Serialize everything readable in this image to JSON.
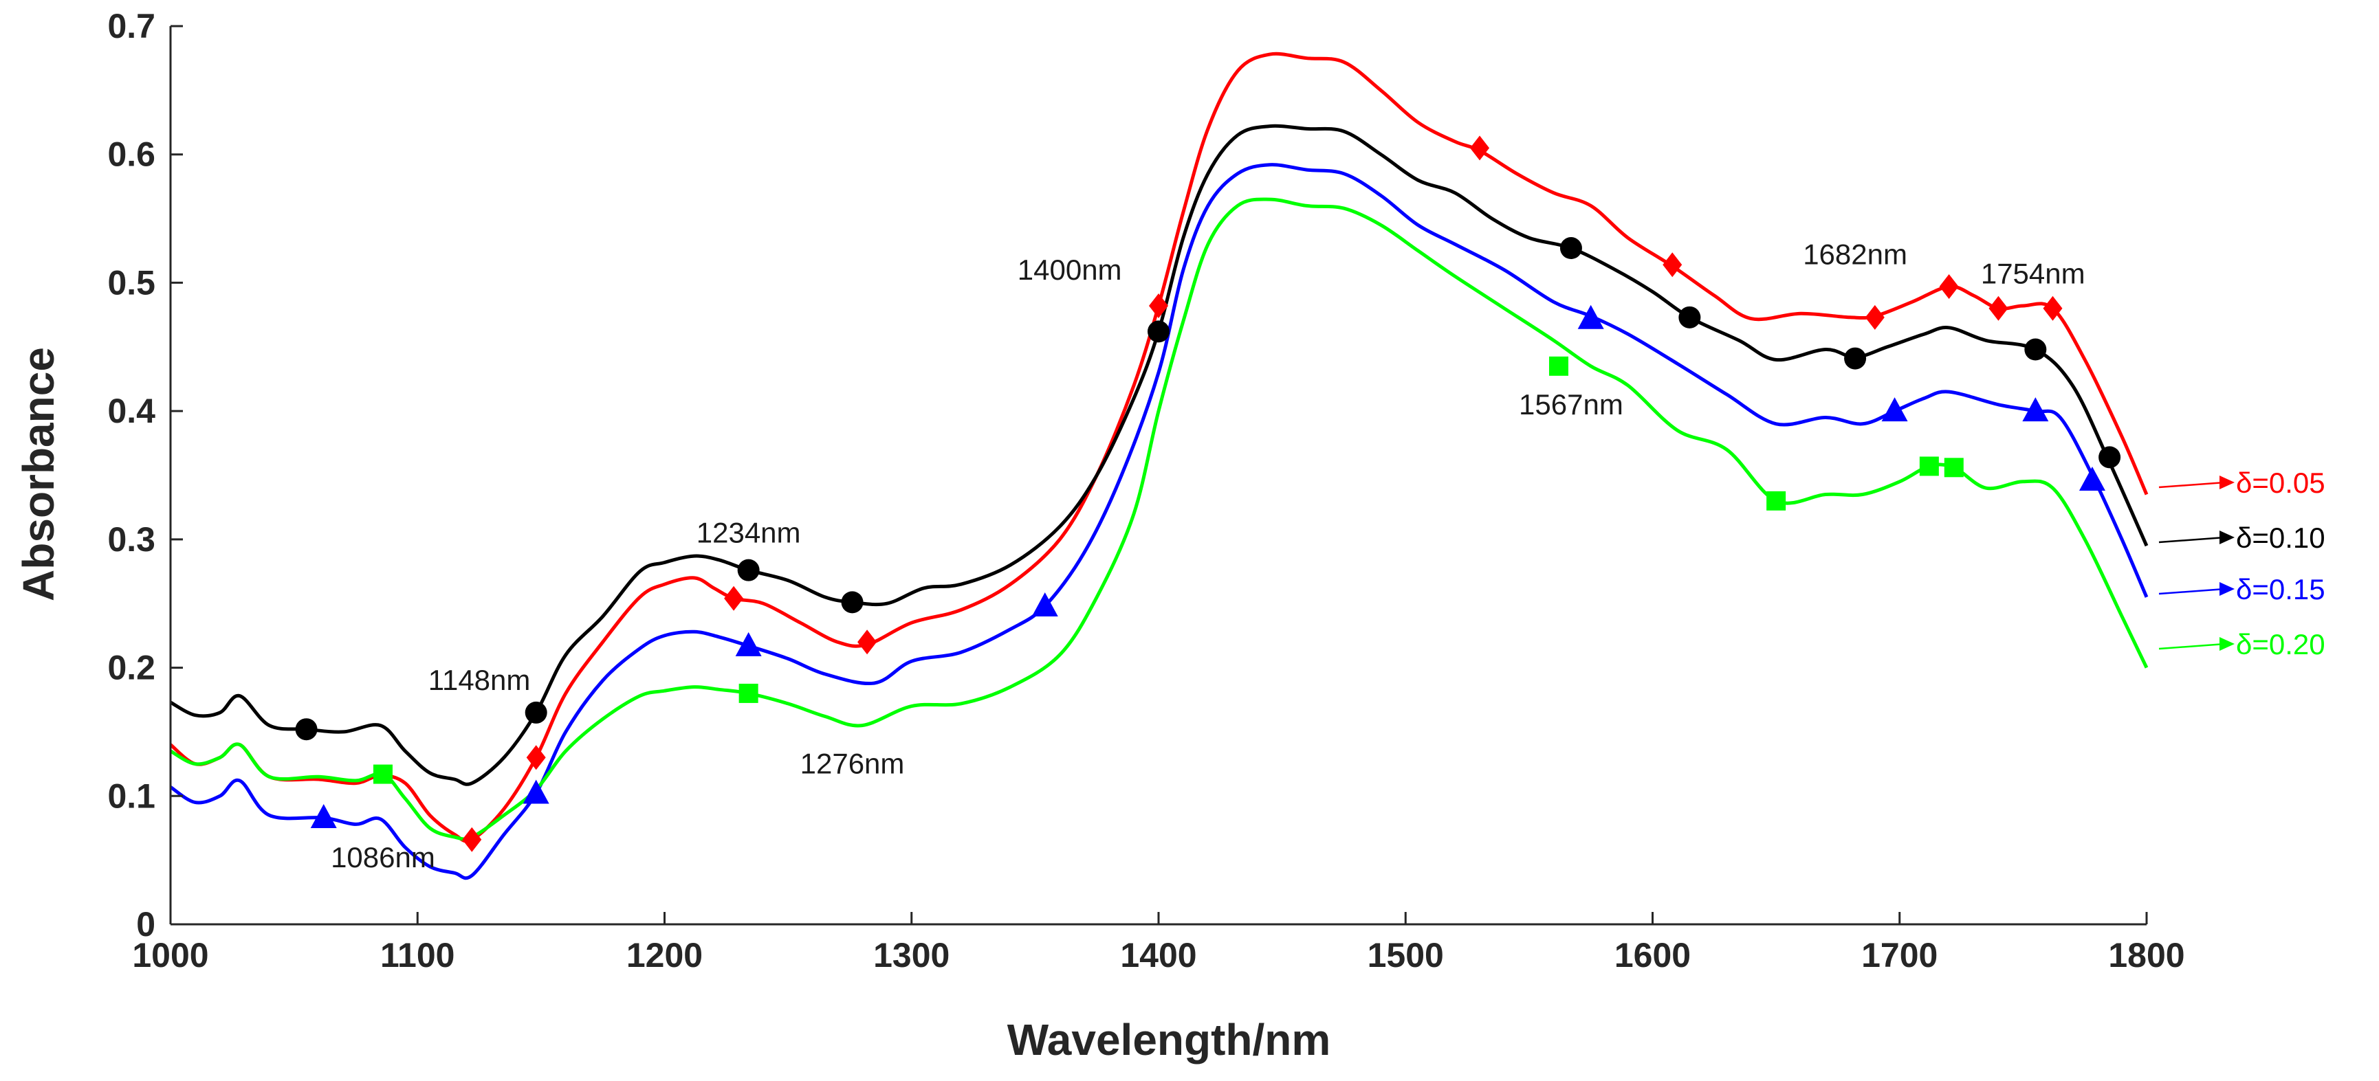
{
  "chart_data": {
    "type": "line",
    "title": "",
    "xlabel": "Wavelength/nm",
    "ylabel": "Absorbance",
    "xlim": [
      1000,
      1800
    ],
    "ylim": [
      0,
      0.7
    ],
    "xticks": [
      1000,
      1100,
      1200,
      1300,
      1400,
      1500,
      1600,
      1700,
      1800
    ],
    "yticks": [
      0,
      0.1,
      0.2,
      0.3,
      0.4,
      0.5,
      0.6,
      0.7
    ],
    "ytick_labels": [
      "0",
      "0.1",
      "0.2",
      "0.3",
      "0.4",
      "0.5",
      "0.6",
      "0.7"
    ],
    "grid": false,
    "legend_position": "right",
    "series": [
      {
        "name": "δ=0.05",
        "color": "#ff0000",
        "marker": "diamond",
        "x": [
          1000,
          1010,
          1020,
          1028,
          1040,
          1060,
          1075,
          1085,
          1095,
          1105,
          1115,
          1122,
          1135,
          1148,
          1160,
          1175,
          1190,
          1200,
          1212,
          1220,
          1228,
          1240,
          1255,
          1270,
          1282,
          1300,
          1320,
          1340,
          1360,
          1375,
          1390,
          1400,
          1410,
          1420,
          1432,
          1445,
          1460,
          1475,
          1490,
          1505,
          1520,
          1530,
          1545,
          1560,
          1575,
          1590,
          1608,
          1625,
          1640,
          1660,
          1680,
          1690,
          1705,
          1720,
          1730,
          1740,
          1750,
          1762,
          1775,
          1790,
          1800
        ],
        "y": [
          0.14,
          0.125,
          0.13,
          0.14,
          0.115,
          0.113,
          0.11,
          0.116,
          0.11,
          0.085,
          0.07,
          0.066,
          0.09,
          0.13,
          0.18,
          0.22,
          0.255,
          0.265,
          0.27,
          0.262,
          0.254,
          0.25,
          0.235,
          0.22,
          0.218,
          0.235,
          0.245,
          0.265,
          0.3,
          0.35,
          0.42,
          0.482,
          0.555,
          0.62,
          0.665,
          0.678,
          0.675,
          0.672,
          0.65,
          0.625,
          0.61,
          0.603,
          0.585,
          0.57,
          0.56,
          0.535,
          0.513,
          0.49,
          0.472,
          0.476,
          0.473,
          0.474,
          0.485,
          0.497,
          0.49,
          0.48,
          0.482,
          0.48,
          0.44,
          0.38,
          0.335
        ],
        "markers_x": [
          1122,
          1148,
          1228,
          1282,
          1400,
          1530,
          1608,
          1690,
          1720,
          1740,
          1762
        ],
        "markers_y": [
          0.066,
          0.13,
          0.254,
          0.22,
          0.482,
          0.605,
          0.514,
          0.473,
          0.497,
          0.48,
          0.48
        ]
      },
      {
        "name": "δ=0.10",
        "color": "#000000",
        "marker": "circle",
        "x": [
          1000,
          1010,
          1020,
          1028,
          1040,
          1055,
          1070,
          1085,
          1095,
          1105,
          1115,
          1122,
          1135,
          1148,
          1160,
          1175,
          1190,
          1200,
          1212,
          1222,
          1234,
          1250,
          1265,
          1276,
          1290,
          1305,
          1320,
          1340,
          1360,
          1375,
          1390,
          1400,
          1410,
          1420,
          1432,
          1445,
          1460,
          1475,
          1490,
          1505,
          1520,
          1535,
          1550,
          1567,
          1585,
          1600,
          1615,
          1635,
          1650,
          1670,
          1682,
          1695,
          1710,
          1720,
          1735,
          1755,
          1770,
          1785,
          1800
        ],
        "y": [
          0.173,
          0.163,
          0.165,
          0.178,
          0.155,
          0.152,
          0.15,
          0.155,
          0.135,
          0.118,
          0.113,
          0.11,
          0.13,
          0.165,
          0.21,
          0.24,
          0.275,
          0.282,
          0.287,
          0.284,
          0.276,
          0.268,
          0.255,
          0.251,
          0.25,
          0.262,
          0.265,
          0.28,
          0.31,
          0.35,
          0.41,
          0.462,
          0.535,
          0.585,
          0.615,
          0.622,
          0.62,
          0.618,
          0.6,
          0.58,
          0.57,
          0.55,
          0.535,
          0.527,
          0.51,
          0.493,
          0.473,
          0.455,
          0.44,
          0.448,
          0.442,
          0.45,
          0.46,
          0.465,
          0.455,
          0.448,
          0.42,
          0.36,
          0.295
        ],
        "markers_x": [
          1055,
          1148,
          1234,
          1276,
          1400,
          1567,
          1615,
          1682,
          1755,
          1785
        ],
        "markers_y": [
          0.152,
          0.165,
          0.276,
          0.251,
          0.462,
          0.527,
          0.473,
          0.441,
          0.448,
          0.364
        ]
      },
      {
        "name": "δ=0.15",
        "color": "#0000ff",
        "marker": "triangle",
        "x": [
          1000,
          1010,
          1020,
          1028,
          1040,
          1062,
          1075,
          1085,
          1095,
          1105,
          1115,
          1122,
          1135,
          1148,
          1160,
          1175,
          1190,
          1200,
          1212,
          1222,
          1234,
          1250,
          1265,
          1285,
          1300,
          1320,
          1340,
          1354,
          1370,
          1385,
          1400,
          1410,
          1420,
          1432,
          1445,
          1460,
          1475,
          1490,
          1505,
          1520,
          1540,
          1560,
          1575,
          1590,
          1610,
          1630,
          1650,
          1670,
          1685,
          1698,
          1710,
          1720,
          1740,
          1755,
          1765,
          1778,
          1790,
          1800
        ],
        "y": [
          0.107,
          0.095,
          0.1,
          0.112,
          0.085,
          0.083,
          0.078,
          0.082,
          0.06,
          0.045,
          0.04,
          0.038,
          0.07,
          0.102,
          0.15,
          0.19,
          0.215,
          0.225,
          0.228,
          0.224,
          0.217,
          0.207,
          0.195,
          0.188,
          0.205,
          0.212,
          0.23,
          0.248,
          0.29,
          0.35,
          0.43,
          0.51,
          0.56,
          0.585,
          0.592,
          0.588,
          0.585,
          0.568,
          0.545,
          0.53,
          0.51,
          0.485,
          0.474,
          0.46,
          0.437,
          0.413,
          0.39,
          0.395,
          0.39,
          0.4,
          0.41,
          0.415,
          0.405,
          0.4,
          0.395,
          0.35,
          0.3,
          0.255
        ],
        "markers_x": [
          1062,
          1148,
          1234,
          1354,
          1575,
          1698,
          1755,
          1778
        ],
        "markers_y": [
          0.083,
          0.102,
          0.217,
          0.248,
          0.472,
          0.4,
          0.4,
          0.346
        ]
      },
      {
        "name": "δ=0.20",
        "color": "#00ff00",
        "marker": "square",
        "x": [
          1000,
          1010,
          1020,
          1028,
          1040,
          1060,
          1075,
          1086,
          1095,
          1105,
          1115,
          1122,
          1135,
          1148,
          1160,
          1175,
          1190,
          1200,
          1212,
          1222,
          1234,
          1250,
          1265,
          1280,
          1300,
          1320,
          1340,
          1360,
          1375,
          1390,
          1400,
          1410,
          1420,
          1432,
          1445,
          1460,
          1475,
          1490,
          1505,
          1520,
          1540,
          1560,
          1575,
          1590,
          1610,
          1630,
          1650,
          1670,
          1685,
          1700,
          1712,
          1722,
          1735,
          1750,
          1762,
          1775,
          1790,
          1800
        ],
        "y": [
          0.135,
          0.125,
          0.13,
          0.14,
          0.115,
          0.115,
          0.112,
          0.117,
          0.098,
          0.075,
          0.068,
          0.068,
          0.085,
          0.105,
          0.135,
          0.16,
          0.178,
          0.182,
          0.185,
          0.183,
          0.18,
          0.172,
          0.162,
          0.155,
          0.17,
          0.172,
          0.185,
          0.21,
          0.255,
          0.32,
          0.4,
          0.47,
          0.53,
          0.56,
          0.565,
          0.56,
          0.558,
          0.545,
          0.525,
          0.505,
          0.48,
          0.455,
          0.435,
          0.42,
          0.385,
          0.37,
          0.33,
          0.335,
          0.335,
          0.345,
          0.357,
          0.356,
          0.34,
          0.345,
          0.34,
          0.3,
          0.24,
          0.2
        ],
        "markers_x": [
          1086,
          1234,
          1562,
          1650,
          1712,
          1722
        ],
        "markers_y": [
          0.117,
          0.18,
          0.435,
          0.33,
          0.357,
          0.356
        ]
      }
    ],
    "annotations": [
      {
        "text": "1086nm",
        "x": 1086,
        "y": 0.052
      },
      {
        "text": "1148nm",
        "x": 1125,
        "y": 0.19
      },
      {
        "text": "1234nm",
        "x": 1234,
        "y": 0.305
      },
      {
        "text": "1276nm",
        "x": 1276,
        "y": 0.125
      },
      {
        "text": "1400nm",
        "x": 1364,
        "y": 0.51
      },
      {
        "text": "1567nm",
        "x": 1567,
        "y": 0.405
      },
      {
        "text": "1682nm",
        "x": 1682,
        "y": 0.522
      },
      {
        "text": "1754nm",
        "x": 1754,
        "y": 0.507
      }
    ]
  }
}
